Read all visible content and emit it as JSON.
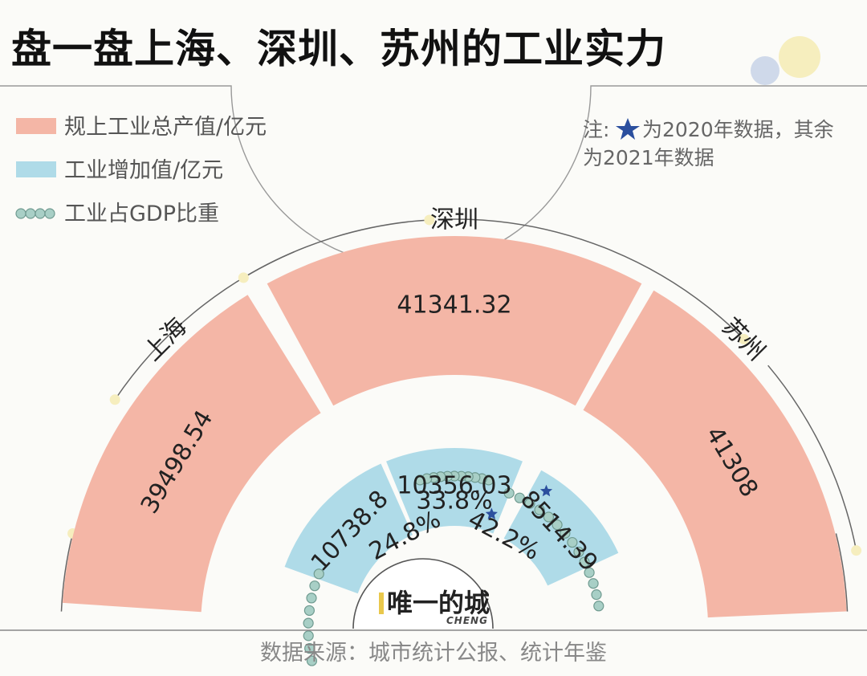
{
  "title": "盘一盘上海、深圳、苏州的工业实力",
  "legend": [
    {
      "label": "规上工业总产值/亿元",
      "color": "#f4b6a6",
      "kind": "rect"
    },
    {
      "label": "工业增加值/亿元",
      "color": "#afdbe8",
      "kind": "rect"
    },
    {
      "label": "工业占GDP比重",
      "color": "#a8cfc6",
      "kind": "beads"
    }
  ],
  "note": {
    "line1_prefix": "注:",
    "line1_rest": "为2020年数据，其余",
    "line2": "为2021年数据",
    "star_color": "#2b4f9e"
  },
  "source": "数据来源：城市统计公报、统计年鉴",
  "logo": {
    "text": "唯一的城",
    "sub": "CHENG",
    "bar_color": "#e9c84c"
  },
  "chart_data": {
    "type": "radial-bar",
    "categories": [
      "上海",
      "深圳",
      "苏州"
    ],
    "series": [
      {
        "name": "规上工业总产值/亿元",
        "values": [
          39498.54,
          41341.32,
          41308
        ],
        "labels": [
          "39498.54",
          "41341.32",
          "41308"
        ],
        "color": "#f4b6a6"
      },
      {
        "name": "工业增加值/亿元",
        "values": [
          10738.8,
          10356.03,
          8514.39
        ],
        "labels": [
          "10738.8",
          "10356.03",
          "8514.39"
        ],
        "color": "#afdbe8",
        "starred": [
          false,
          false,
          true
        ]
      },
      {
        "name": "工业占GDP比重",
        "values": [
          24.8,
          33.8,
          42.2
        ],
        "labels": [
          "24.8%",
          "33.8%",
          "42.2%"
        ],
        "color": "#a8cfc6",
        "starred": [
          false,
          false,
          true
        ]
      }
    ]
  }
}
